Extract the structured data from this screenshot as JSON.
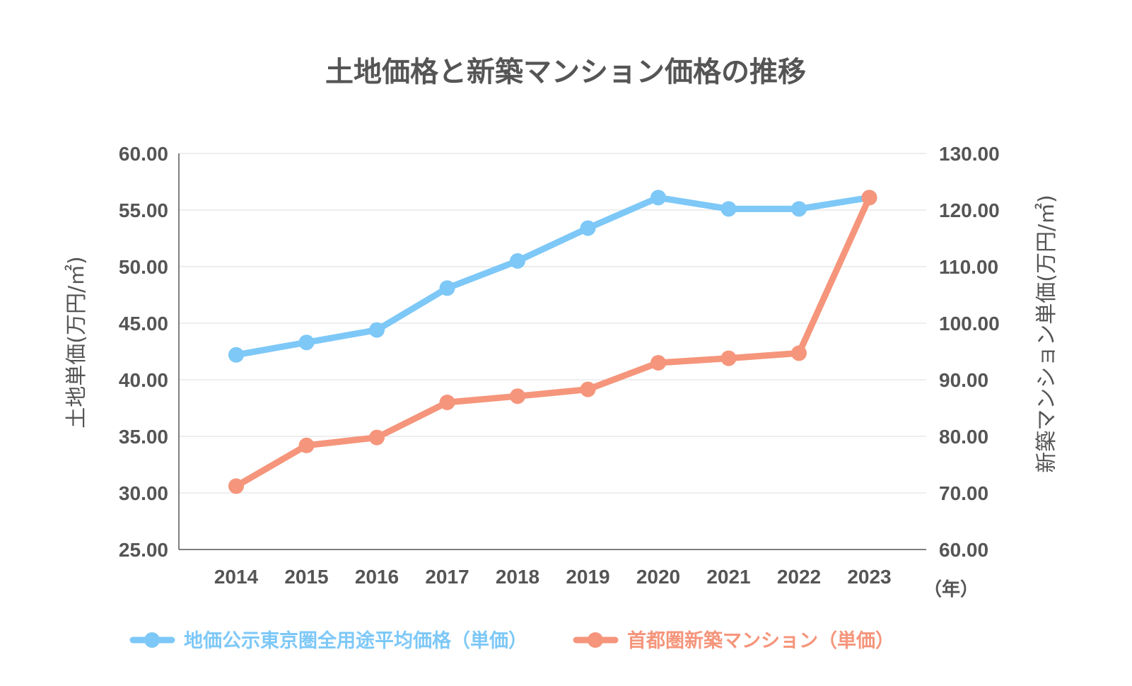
{
  "chart_data": {
    "type": "line",
    "title": "土地価格と新築マンション価格の推移",
    "x": [
      "2014",
      "2015",
      "2016",
      "2017",
      "2018",
      "2019",
      "2020",
      "2021",
      "2022",
      "2023"
    ],
    "x_unit": "（年）",
    "ylabel_left": "土地単価(万円/㎡)",
    "ylabel_right": "新築マンション単価(万円/㎡)",
    "ylim_left": [
      25,
      60
    ],
    "ylim_right": [
      60,
      130
    ],
    "yticks_left": [
      "25.00",
      "30.00",
      "35.00",
      "40.00",
      "45.00",
      "50.00",
      "55.00",
      "60.00"
    ],
    "yticks_right": [
      "60.00",
      "70.00",
      "80.00",
      "90.00",
      "100.00",
      "110.00",
      "120.00",
      "130.00"
    ],
    "grid": true,
    "legend_position": "bottom",
    "series": [
      {
        "name": "地価公示東京圏全用途平均価格（単価）",
        "axis": "left",
        "color": "#7dc8f7",
        "values": [
          42.2,
          43.3,
          44.4,
          48.1,
          50.5,
          53.4,
          56.1,
          55.1,
          55.1,
          56.1
        ]
      },
      {
        "name": "首都圏新築マンション（単価）",
        "axis": "right",
        "color": "#f5957b",
        "values": [
          71.2,
          78.4,
          79.8,
          86.0,
          87.1,
          88.3,
          93.0,
          93.8,
          94.7,
          122.2
        ]
      }
    ]
  }
}
